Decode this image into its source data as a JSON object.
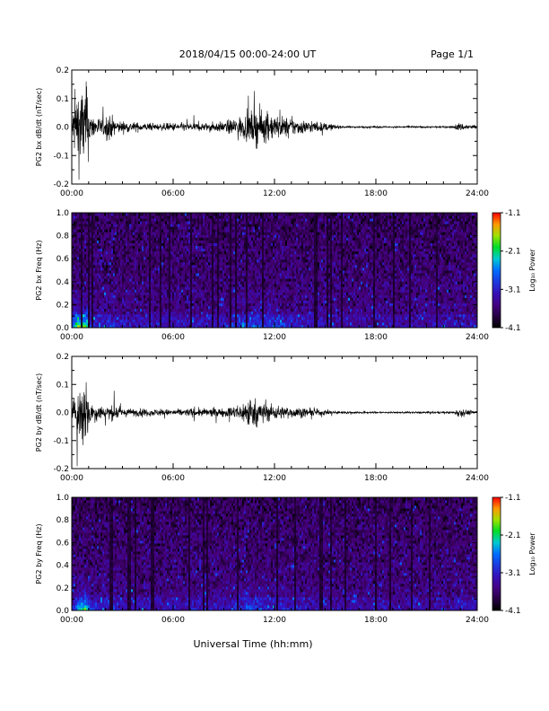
{
  "header": {
    "title": "2018/04/15   00:00-24:00 UT",
    "page": "Page 1/1"
  },
  "footer": {
    "xlabel": "Universal Time (hh:mm)"
  },
  "chart_data": [
    {
      "type": "line",
      "ylabel": "PG2 bx dB/dt (nT/sec)",
      "xlim": [
        0,
        24
      ],
      "ylim": [
        -0.2,
        0.2
      ],
      "x_ticks": [
        "00:00",
        "06:00",
        "12:00",
        "18:00",
        "24:00"
      ],
      "y_ticks": [
        "0.2",
        "0.1",
        "0.0",
        "-0.1",
        "-0.2"
      ],
      "activity": [
        [
          0.0,
          0.05
        ],
        [
          0.3,
          0.2
        ],
        [
          0.9,
          0.2
        ],
        [
          1.1,
          0.06
        ],
        [
          1.8,
          0.04
        ],
        [
          2.2,
          0.07
        ],
        [
          2.6,
          0.03
        ],
        [
          5.0,
          0.015
        ],
        [
          6.0,
          0.02
        ],
        [
          8.0,
          0.02
        ],
        [
          9.0,
          0.025
        ],
        [
          9.5,
          0.04
        ],
        [
          10.3,
          0.06
        ],
        [
          11.0,
          0.09
        ],
        [
          11.5,
          0.07
        ],
        [
          12.5,
          0.05
        ],
        [
          13.5,
          0.035
        ],
        [
          15.0,
          0.02
        ],
        [
          16.0,
          0.005
        ],
        [
          19.0,
          0.004
        ],
        [
          22.5,
          0.005
        ],
        [
          22.9,
          0.02
        ],
        [
          23.5,
          0.012
        ],
        [
          24.0,
          0.01
        ]
      ]
    },
    {
      "type": "heatmap",
      "ylabel": "PG2 bx Freq (Hz)",
      "xlim": [
        0,
        24
      ],
      "ylim": [
        0,
        1
      ],
      "x_ticks": [
        "00:00",
        "06:00",
        "12:00",
        "18:00",
        "24:00"
      ],
      "y_ticks": [
        "1.0",
        "0.8",
        "0.6",
        "0.4",
        "0.2",
        "0.0"
      ],
      "colorbar": {
        "label": "Log₁₀ Power",
        "ticks": [
          "-1.1",
          "-2.1",
          "-3.1",
          "-4.1"
        ],
        "range": [
          -4.1,
          -1.1
        ]
      }
    },
    {
      "type": "line",
      "ylabel": "PG2 by dB/dt (nT/sec)",
      "xlim": [
        0,
        24
      ],
      "ylim": [
        -0.2,
        0.2
      ],
      "x_ticks": [
        "00:00",
        "06:00",
        "12:00",
        "18:00",
        "24:00"
      ],
      "y_ticks": [
        "0.2",
        "0.1",
        "0.0",
        "-0.1",
        "-0.2"
      ],
      "activity": [
        [
          0.0,
          0.04
        ],
        [
          0.4,
          0.12
        ],
        [
          0.8,
          0.2
        ],
        [
          1.1,
          0.05
        ],
        [
          2.0,
          0.03
        ],
        [
          2.4,
          0.04
        ],
        [
          3.0,
          0.02
        ],
        [
          6.0,
          0.015
        ],
        [
          7.0,
          0.02
        ],
        [
          9.0,
          0.02
        ],
        [
          10.0,
          0.04
        ],
        [
          10.5,
          0.08
        ],
        [
          11.2,
          0.05
        ],
        [
          12.5,
          0.03
        ],
        [
          14.0,
          0.02
        ],
        [
          16.0,
          0.006
        ],
        [
          19.0,
          0.004
        ],
        [
          22.6,
          0.006
        ],
        [
          22.9,
          0.025
        ],
        [
          23.5,
          0.012
        ],
        [
          24.0,
          0.008
        ]
      ]
    },
    {
      "type": "heatmap",
      "ylabel": "PG2 by Freq (Hz)",
      "xlim": [
        0,
        24
      ],
      "ylim": [
        0,
        1
      ],
      "x_ticks": [
        "00:00",
        "06:00",
        "12:00",
        "18:00",
        "24:00"
      ],
      "y_ticks": [
        "1.0",
        "0.8",
        "0.6",
        "0.4",
        "0.2",
        "0.0"
      ],
      "colorbar": {
        "label": "Log₁₀ Power",
        "ticks": [
          "-1.1",
          "-2.1",
          "-3.1",
          "-4.1"
        ],
        "range": [
          -4.1,
          -1.1
        ]
      }
    }
  ]
}
